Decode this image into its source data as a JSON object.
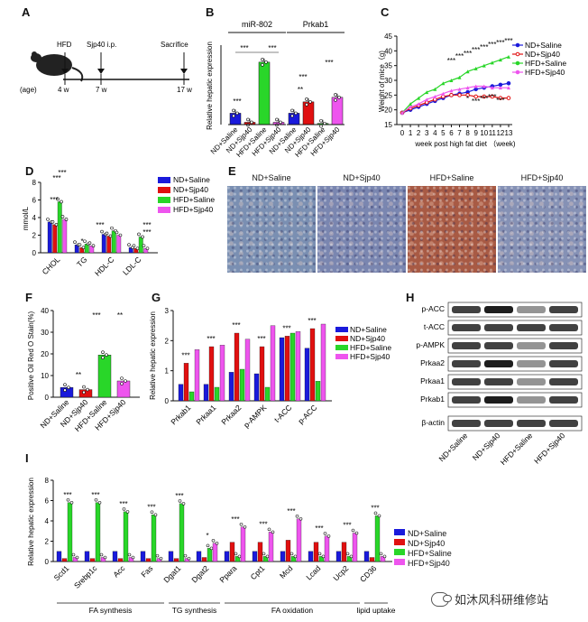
{
  "panels": {
    "A": "A",
    "B": "B",
    "C": "C",
    "D": "D",
    "E": "E",
    "F": "F",
    "G": "G",
    "H": "H",
    "I": "I"
  },
  "groups": [
    "ND+Saline",
    "ND+Sjp40",
    "HFD+Saline",
    "HFD+Sjp40"
  ],
  "colors": {
    "nd_saline": "#1a1adb",
    "nd_sjp40": "#e01010",
    "hfd_saline": "#29d629",
    "hfd_sjp40": "#ee55ee"
  },
  "timeline": {
    "hfd": "HFD",
    "sjp": "Sjp40 i.p.",
    "sac": "Sacrifice",
    "age_label": "(age)",
    "t1": "4 w",
    "t2": "7 w",
    "t3": "17 w"
  },
  "sig": {
    "s1": "*",
    "s2": "**",
    "s3": "***"
  },
  "chart_data": [
    {
      "panel": "B",
      "type": "bar",
      "ylabel": "Relative  hepatic expression",
      "groups": [
        {
          "name": "miR-802",
          "values": [
            1.0,
            0.2,
            5.5,
            0.2
          ]
        },
        {
          "name": "Prkab1",
          "values": [
            1.0,
            2.0,
            0.1,
            2.4
          ]
        }
      ]
    },
    {
      "panel": "C",
      "type": "line",
      "xlabel": "week post high fat diet （week)",
      "ylabel": "Weight of mice（g)",
      "x": [
        0,
        1,
        2,
        3,
        4,
        5,
        6,
        7,
        8,
        9,
        10,
        11,
        12,
        13
      ],
      "ylim": [
        15,
        45
      ],
      "yticks": [
        15,
        20,
        25,
        30,
        35,
        40,
        45
      ],
      "series": [
        {
          "name": "ND+Saline",
          "values": [
            19,
            20,
            21,
            22,
            23,
            24,
            25,
            25.5,
            26,
            27,
            27.5,
            28,
            28.5,
            29
          ]
        },
        {
          "name": "ND+Sjp40",
          "values": [
            19,
            20.5,
            21.5,
            22.5,
            23.5,
            24.5,
            25,
            25,
            25,
            24.5,
            24.5,
            24.5,
            24,
            24
          ]
        },
        {
          "name": "HFD+Saline",
          "values": [
            19,
            22,
            24,
            26,
            27,
            29,
            30,
            31,
            33,
            34,
            35,
            36,
            37,
            38
          ]
        },
        {
          "name": "HFD+Sjp40",
          "values": [
            19,
            21,
            22,
            23.5,
            24.5,
            25.5,
            26.5,
            27,
            27.5,
            28,
            28,
            27.5,
            27.5,
            27.5
          ]
        }
      ]
    },
    {
      "panel": "D",
      "type": "bar",
      "ylabel": "mmol/L",
      "categories": [
        "CHOL",
        "TG",
        "HDL-C",
        "LDL-C"
      ],
      "ylim": [
        0,
        8
      ],
      "yticks": [
        0,
        2,
        4,
        6,
        8
      ],
      "series": [
        {
          "name": "ND+Saline",
          "values": [
            3.5,
            0.9,
            2.1,
            0.6
          ]
        },
        {
          "name": "ND+Sjp40",
          "values": [
            3.2,
            0.6,
            1.9,
            0.5
          ]
        },
        {
          "name": "HFD+Saline",
          "values": [
            5.8,
            1.0,
            2.5,
            1.8
          ]
        },
        {
          "name": "HFD+Sjp40",
          "values": [
            3.8,
            0.8,
            2.0,
            0.5
          ]
        }
      ]
    },
    {
      "panel": "F",
      "type": "bar",
      "ylabel": "Positive Oil Red O Stain(%)",
      "ylim": [
        0,
        40
      ],
      "yticks": [
        0,
        10,
        20,
        30,
        40
      ],
      "categories": [
        "ND+Saline",
        "ND+Sjp40",
        "HFD+Saline",
        "HFD+Sjp40"
      ],
      "values": [
        4.5,
        3.5,
        19.5,
        7.5
      ]
    },
    {
      "panel": "G",
      "type": "bar",
      "ylabel": "Relative  hepatic expression",
      "ylim": [
        0,
        3
      ],
      "yticks": [
        0,
        1,
        2,
        3
      ],
      "categories": [
        "Prkab1",
        "Prkaa1",
        "Prkaa2",
        "p-AMPK",
        "t-ACC",
        "p-ACC"
      ],
      "series": [
        {
          "name": "ND+Saline",
          "values": [
            0.55,
            0.55,
            0.95,
            0.9,
            2.1,
            1.75
          ]
        },
        {
          "name": "ND+Sjp40",
          "values": [
            1.25,
            1.8,
            2.25,
            1.8,
            2.15,
            2.4
          ]
        },
        {
          "name": "HFD+Saline",
          "values": [
            0.3,
            0.45,
            1.05,
            0.45,
            2.25,
            0.65
          ]
        },
        {
          "name": "HFD+Sjp40",
          "values": [
            1.7,
            1.85,
            2.05,
            2.5,
            2.3,
            2.55
          ]
        }
      ]
    },
    {
      "panel": "I",
      "type": "bar",
      "ylabel": "Relative  hepatic expression",
      "ylim": [
        0,
        8
      ],
      "yticks": [
        0,
        2,
        4,
        6,
        8
      ],
      "categories": [
        "Scd1",
        "Srebp1c",
        "Acc",
        "Fas",
        "Dgat1",
        "Dgat2",
        "Ppara",
        "Cpt1",
        "Mcd",
        "Lcad",
        "Ucp2",
        "CD36"
      ],
      "series": [
        {
          "name": "ND+Saline",
          "values": [
            1,
            1,
            1,
            1,
            1,
            1,
            1,
            1,
            1,
            1,
            1,
            1
          ]
        },
        {
          "name": "ND+Sjp40",
          "values": [
            0.3,
            0.3,
            0.3,
            0.3,
            0.3,
            0.4,
            1.9,
            1.9,
            2.1,
            1.9,
            1.9,
            0.4
          ]
        },
        {
          "name": "HFD+Saline",
          "values": [
            5.8,
            5.8,
            4.9,
            4.6,
            5.7,
            1.3,
            0.5,
            0.5,
            0.5,
            0.5,
            0.5,
            4.5
          ]
        },
        {
          "name": "HFD+Sjp40",
          "values": [
            0.4,
            0.4,
            0.4,
            0.3,
            0.3,
            1.8,
            3.4,
            2.9,
            4.2,
            2.5,
            2.8,
            0.5
          ]
        }
      ],
      "brackets": [
        {
          "label": "FA synthesis",
          "from": 0,
          "to": 3
        },
        {
          "label": "TG synthesis",
          "from": 4,
          "to": 5
        },
        {
          "label": "FA oxidation",
          "from": 6,
          "to": 10
        },
        {
          "label": "lipid uptake",
          "from": 11,
          "to": 11
        }
      ]
    }
  ],
  "western": {
    "proteins": [
      "p-ACC",
      "t-ACC",
      "p-AMPK",
      "Prkaa2",
      "Prkaa1",
      "Prkab1",
      "β-actin"
    ]
  },
  "ihc": {
    "labels": [
      "ND+Saline",
      "ND+Sjp40",
      "HFD+Saline",
      "HFD+Sjp40"
    ]
  },
  "watermark": "如沐风科研维修站"
}
